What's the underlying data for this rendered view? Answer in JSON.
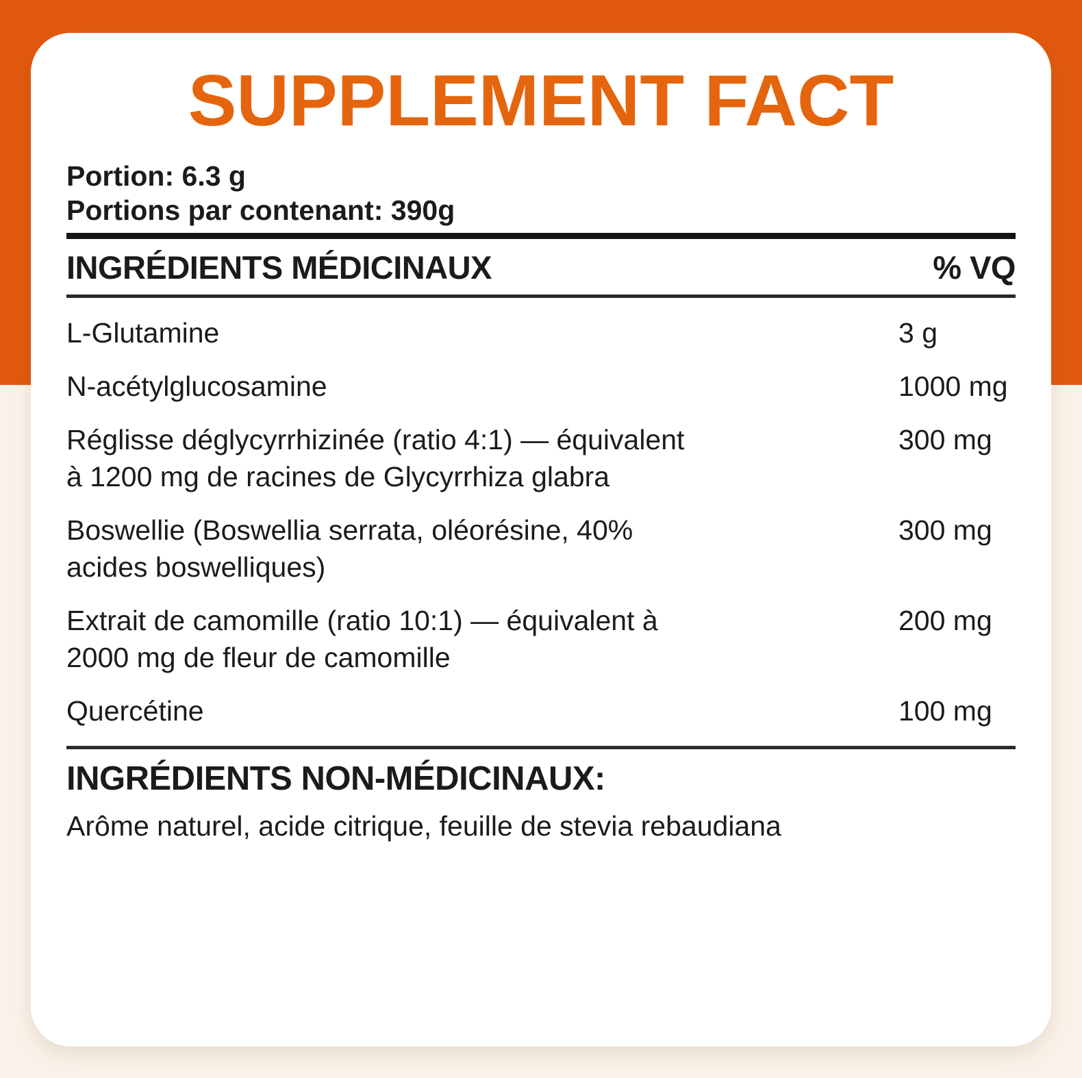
{
  "theme": {
    "banner_color": "#E0590E",
    "card_color": "#FFFFFF",
    "page_background_color": "#FAF1E8",
    "title_color": "#E4650D",
    "text_color": "#1B1B1B"
  },
  "label": {
    "title": "SUPPLEMENT FACT",
    "serving": {
      "portion": "Portion: 6.3 g",
      "portions_per_container": "Portions par contenant: 390g"
    },
    "medicinal": {
      "header": "INGRÉDIENTS MÉDICINAUX",
      "amount_header": "% VQ",
      "rows": [
        {
          "name": "L-Glutamine",
          "amount": "3 g"
        },
        {
          "name": "N-acétylglucosamine",
          "amount": "1000 mg"
        },
        {
          "name": "Réglisse déglycyrrhizinée (ratio 4:1) — équivalent\nà 1200 mg de racines de Glycyrrhiza glabra",
          "amount": "300 mg"
        },
        {
          "name": "Boswellie (Boswellia serrata, oléorésine, 40%\nacides boswelliques)",
          "amount": "300 mg"
        },
        {
          "name": "Extrait de camomille (ratio 10:1) — équivalent à\n2000 mg de fleur de camomille",
          "amount": "200 mg"
        },
        {
          "name": "Quercétine",
          "amount": "100 mg"
        }
      ]
    },
    "non_medicinal": {
      "header": "INGRÉDIENTS NON-MÉDICINAUX:",
      "text": "Arôme naturel, acide citrique, feuille de stevia rebaudiana"
    }
  }
}
